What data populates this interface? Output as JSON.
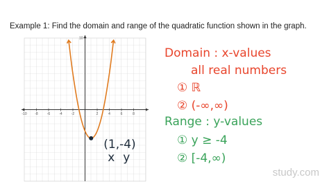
{
  "header": {
    "title": "Example 1:  Find the domain and range of the quadratic function shown in the graph."
  },
  "chart_data": {
    "type": "line",
    "x": [
      -2.7,
      -2,
      -1,
      0,
      1,
      2,
      3,
      4,
      4.7
    ],
    "series": [
      {
        "color": "#e07b1f",
        "values": [
          9.69,
          5,
          0,
          -3,
          -4,
          -3,
          0,
          5,
          9.69
        ]
      }
    ],
    "xlim": [
      -10,
      10
    ],
    "ylim": [
      -10,
      10
    ],
    "xticks": [
      -10,
      -8,
      -6,
      -4,
      -2,
      2,
      4,
      6,
      8
    ],
    "yticks": [
      10
    ],
    "point": {
      "x": 1,
      "y": -4,
      "label": "(1,-4)",
      "x_note": "x",
      "y_note": "y"
    }
  },
  "notes": {
    "domain": {
      "heading": "Domain : x-values",
      "text": "all real numbers",
      "items": [
        "① ℝ",
        "② (-∞,∞)"
      ]
    },
    "range": {
      "heading": "Range : y-values",
      "items": [
        "① y ≥ -4",
        "② [-4,∞)"
      ]
    }
  },
  "watermark": "study.com"
}
